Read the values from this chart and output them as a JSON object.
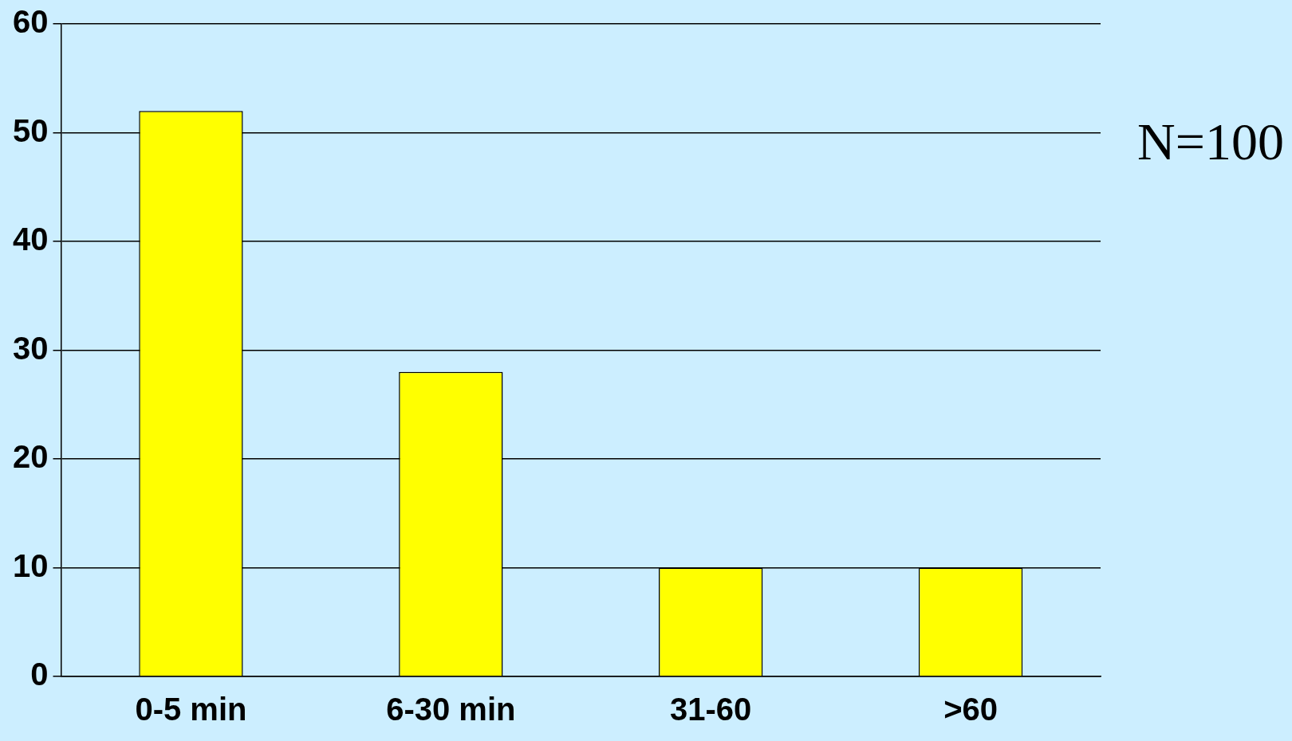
{
  "chart_data": {
    "type": "bar",
    "categories": [
      "0-5 min",
      "6-30 min",
      "31-60",
      ">60"
    ],
    "values": [
      52,
      28,
      10,
      10
    ],
    "color": "#ffff00",
    "ylim": [
      0,
      60
    ],
    "yticks": [
      0,
      10,
      20,
      30,
      40,
      50,
      60
    ],
    "grid": "y",
    "annotations": [
      "N=100"
    ]
  }
}
